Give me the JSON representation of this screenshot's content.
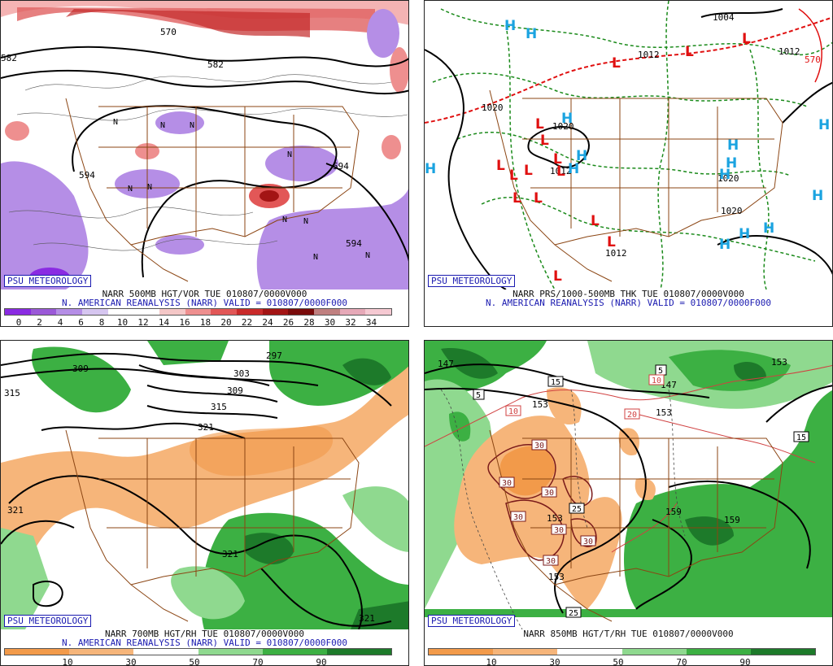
{
  "panels": [
    {
      "badge": "PSU METEOROLOGY",
      "title": "NARR 500MB HGT/VOR TUE 010807/0000V000",
      "subtitle": "N. AMERICAN REANALYSIS (NARR) VALID = 010807/0000F000",
      "contour_labels": [
        "570",
        "582",
        "582",
        "594",
        "594",
        "594"
      ],
      "center_labels": [
        "N",
        "N",
        "N",
        "N",
        "N",
        "N",
        "N",
        "N",
        "N",
        "N"
      ],
      "colorbar": {
        "colors": [
          "#8a2be2",
          "#9b59d8",
          "#b58ee6",
          "#d6c6f0",
          "#ffffff",
          "#ffffff",
          "#f4c7c7",
          "#ee8f8f",
          "#e25757",
          "#c92a2a",
          "#a31414",
          "#7a0b0b",
          "#c08080",
          "#e6a9b8",
          "#f5c9d2"
        ],
        "labels": [
          "0",
          "2",
          "4",
          "6",
          "8",
          "10",
          "12",
          "14",
          "16",
          "18",
          "20",
          "22",
          "24",
          "26",
          "28",
          "30",
          "32",
          "34"
        ]
      }
    },
    {
      "badge": "PSU METEOROLOGY",
      "title": "NARR PRS/1000-500MB THK TUE 010807/0000V000",
      "subtitle": "N. AMERICAN REANALYSIS (NARR) VALID = 010807/0000F000",
      "contour_labels": [
        "1004",
        "1012",
        "1020",
        "1020",
        "1012",
        "1012",
        "1020",
        "1012",
        "570",
        "1020"
      ],
      "high_symbol": "H",
      "low_symbol": "L"
    },
    {
      "badge": "PSU METEOROLOGY",
      "title": "NARR 700MB HGT/RH TUE 010807/0000V000",
      "subtitle": "N. AMERICAN REANALYSIS (NARR) VALID = 010807/0000F000",
      "contour_labels": [
        "309",
        "297",
        "303",
        "309",
        "315",
        "321",
        "315",
        "321",
        "321",
        "321"
      ],
      "colorbar": {
        "colors": [
          "#f29a4a",
          "#f6b57a",
          "#ffffff",
          "#8fd98f",
          "#3cb043",
          "#1d7a2a"
        ],
        "labels": [
          "10",
          "30",
          "50",
          "70",
          "90"
        ]
      }
    },
    {
      "badge": "PSU METEOROLOGY",
      "title": "NARR 850MB HGT/T/RH TUE 010807/0000V000",
      "subtitle": "",
      "contour_labels": [
        "147",
        "153",
        "147",
        "153",
        "159",
        "159",
        "153",
        "153",
        "153"
      ],
      "boxed_labels": [
        "5",
        "15",
        "10",
        "5",
        "10",
        "20",
        "15",
        "30",
        "30",
        "30",
        "25",
        "30",
        "30",
        "30",
        "30",
        "25"
      ],
      "colorbar": {
        "colors": [
          "#f29a4a",
          "#f6b57a",
          "#ffffff",
          "#8fd98f",
          "#3cb043",
          "#1d7a2a"
        ],
        "labels": [
          "10",
          "30",
          "50",
          "70",
          "90"
        ]
      }
    }
  ]
}
